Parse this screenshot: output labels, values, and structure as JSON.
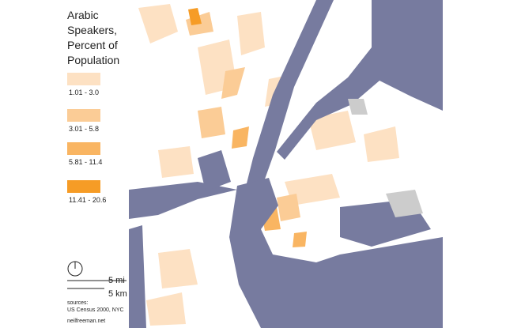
{
  "title": "Arabic Speakers, Percent of Population",
  "legend": [
    {
      "label": "1.01 - 3.0",
      "color": "#fde1c3"
    },
    {
      "label": "3.01 - 5.8",
      "color": "#fbcc96"
    },
    {
      "label": "5.81 - 11.4",
      "color": "#f9b562"
    },
    {
      "label": "11.41 - 20.6",
      "color": "#f69c26"
    }
  ],
  "scale": {
    "miles": "5 mi",
    "km": "5 km"
  },
  "sources": {
    "heading": "sources:",
    "census": "US Census 2000, NYC",
    "credit": "neilfreeman.net"
  }
}
